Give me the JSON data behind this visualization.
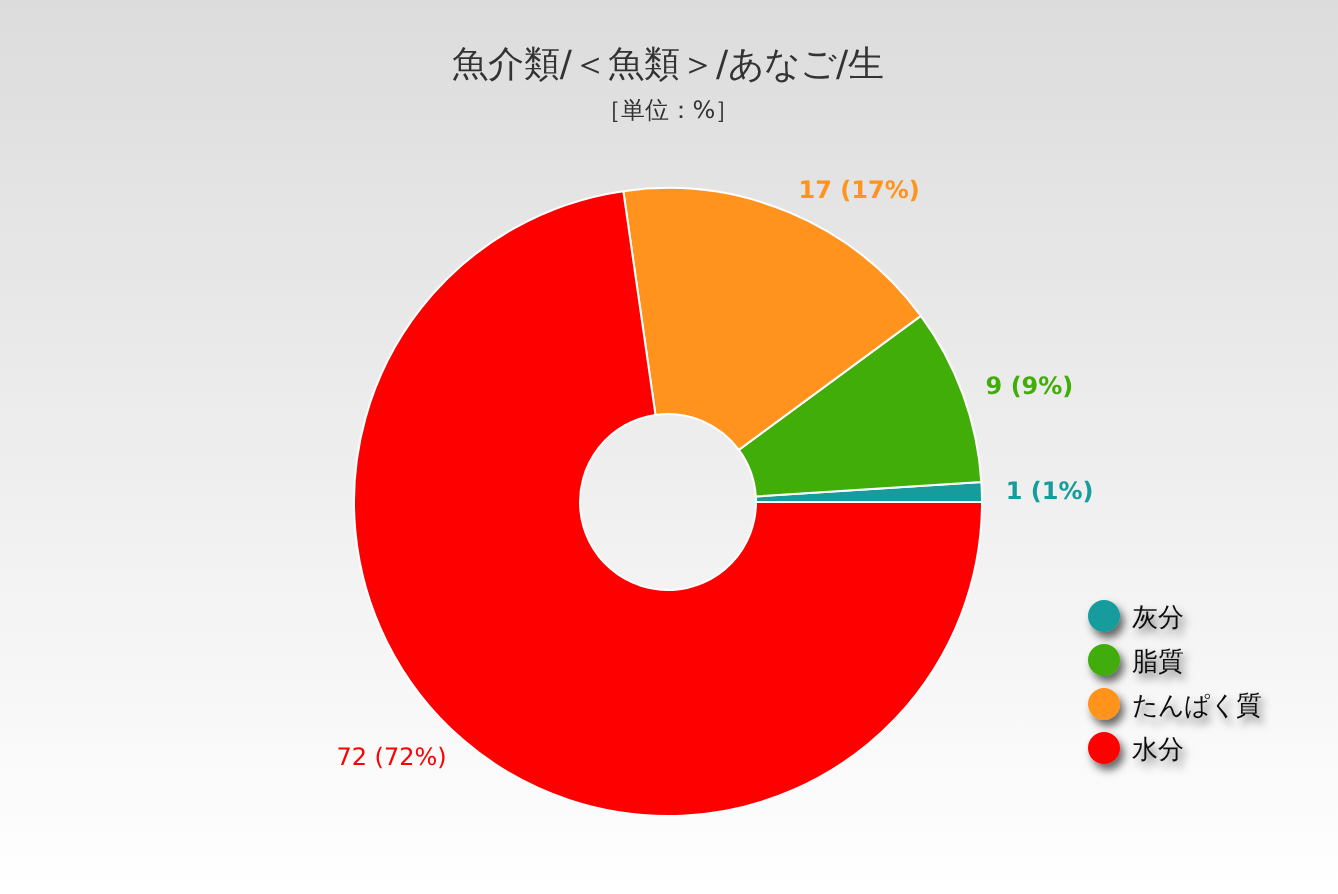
{
  "chart_data": {
    "type": "donut",
    "title": "魚介類/＜魚類＞/あなご/生",
    "subtitle": "［単位：%］",
    "categories": [
      "灰分",
      "脂質",
      "たんぱく質",
      "水分"
    ],
    "values": [
      1,
      9,
      17,
      72
    ],
    "colors": [
      "#169c9c",
      "#40ad08",
      "#ff931e",
      "#ff0000"
    ],
    "value_labels": [
      "1 (1%)",
      "9 (9%)",
      "17 (17%)",
      "72 (72%)"
    ],
    "legend": "bottom right"
  }
}
